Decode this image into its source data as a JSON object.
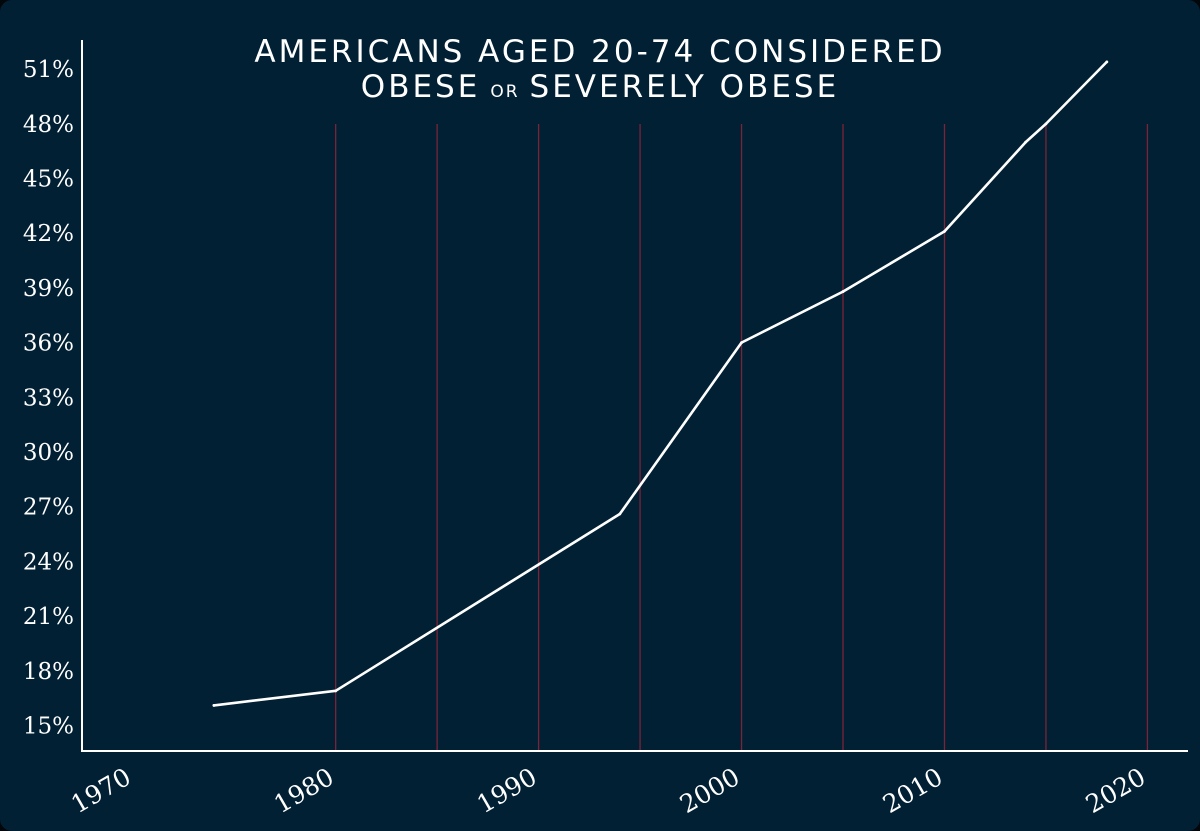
{
  "chart_data": {
    "type": "line",
    "title": {
      "line1": "AMERICANS AGED 20-74 CONSIDERED",
      "line2_prefix": "OBESE",
      "line2_small": "OR",
      "line2_suffix": "SEVERELY OBESE"
    },
    "xlabel": "",
    "ylabel": "",
    "x_ticks": [
      1970,
      1980,
      1990,
      2000,
      2010,
      2020
    ],
    "y_ticks": [
      15,
      18,
      21,
      24,
      27,
      30,
      33,
      36,
      39,
      42,
      45,
      48,
      51
    ],
    "y_tick_labels": [
      "15%",
      "18%",
      "21%",
      "24%",
      "27%",
      "30%",
      "33%",
      "36%",
      "39%",
      "42%",
      "45%",
      "48%",
      "51%"
    ],
    "xlim": [
      1967.5,
      2022
    ],
    "ylim": [
      13.6,
      52.6
    ],
    "gridlines_x": [
      1980,
      1985,
      1990,
      1995,
      2000,
      2005,
      2010,
      2015,
      2020
    ],
    "grid": "vertical",
    "series": [
      {
        "points": [
          {
            "x": 1974,
            "y": 16.1
          },
          {
            "x": 1980,
            "y": 16.9
          },
          {
            "x": 1994,
            "y": 26.6
          },
          {
            "x": 2000,
            "y": 36.0
          },
          {
            "x": 2005,
            "y": 38.8
          },
          {
            "x": 2010,
            "y": 42.1
          },
          {
            "x": 2014,
            "y": 47.0
          },
          {
            "x": 2015,
            "y": 48.0
          },
          {
            "x": 2018,
            "y": 51.4
          }
        ]
      }
    ],
    "colors": {
      "background": "#02060a",
      "plot_background": "#022034",
      "line": "#ffffff",
      "axis": "#ffffff",
      "gridline": "#7a2438"
    }
  }
}
